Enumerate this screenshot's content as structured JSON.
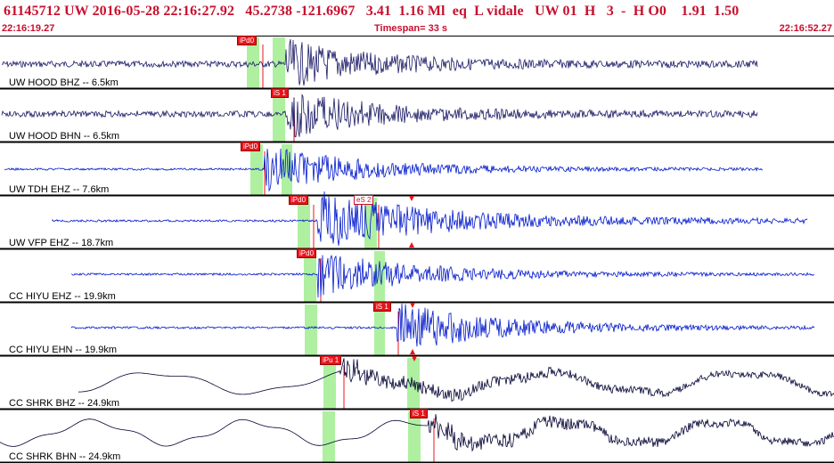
{
  "header": {
    "event_line": "61145712 UW 2016-05-28 22:16:27.92   45.2738 -121.6967   3.41  1.16 Ml  eq  L vidale   UW 01  H   3  -  H O0    1.91  1.50",
    "start_time": "22:16:19.27",
    "timespan": "Timespan=  33 s",
    "end_time": "22:16:52.27"
  },
  "colors": {
    "header_text": "#c8102e",
    "trace_dark": "#1a1a66",
    "trace_blue": "#0018cc",
    "trace_black": "#000033",
    "window_green": "#aef0a0",
    "pick_red": "#e8141c",
    "separator": "#000000"
  },
  "panels": [
    {
      "label": "UW HOOD BHZ -- 6.5km",
      "pick_label": "iPd0",
      "pick2_label": ""
    },
    {
      "label": "UW HOOD BHN -- 6.5km",
      "pick_label": "iS 1",
      "pick2_label": ""
    },
    {
      "label": "UW TDH EHZ -- 7.6km",
      "pick_label": "iPd0",
      "pick2_label": ""
    },
    {
      "label": "UW VFP EHZ -- 18.7km",
      "pick_label": "iPd0",
      "pick2_label": "eS 2"
    },
    {
      "label": "CC HIYU EHZ -- 19.9km",
      "pick_label": "iPd0",
      "pick2_label": ""
    },
    {
      "label": "CC HIYU EHN -- 19.9km",
      "pick_label": "iS 1",
      "pick2_label": ""
    },
    {
      "label": "CC SHRK BHZ -- 24.9km",
      "pick_label": "iPu 1",
      "pick2_label": ""
    },
    {
      "label": "CC SHRK BHN -- 24.9km",
      "pick_label": "iS 1",
      "pick2_label": ""
    }
  ]
}
